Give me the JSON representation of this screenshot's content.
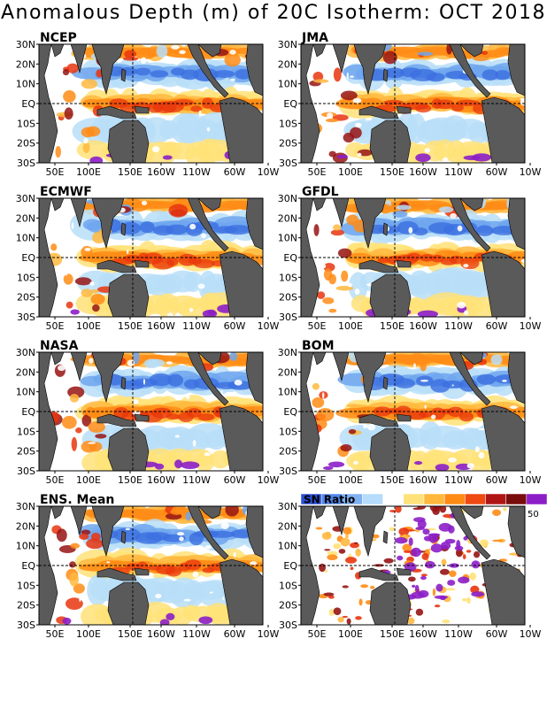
{
  "title": "Anomalous Depth (m) of 20C Isotherm: OCT 2018",
  "chart_data": [
    {
      "type": "heatmap",
      "title": "NCEP",
      "lat_ticks": [
        "30N",
        "20N",
        "10N",
        "EQ",
        "10S",
        "20S",
        "30S"
      ],
      "lon_ticks": [
        "50E",
        "100E",
        "150E",
        "160W",
        "110W",
        "60W",
        "10W"
      ]
    },
    {
      "type": "heatmap",
      "title": "JMA",
      "lat_ticks": [
        "30N",
        "20N",
        "10N",
        "EQ",
        "10S",
        "20S",
        "30S"
      ],
      "lon_ticks": [
        "50E",
        "100E",
        "150E",
        "160W",
        "110W",
        "60W",
        "10W"
      ]
    },
    {
      "type": "heatmap",
      "title": "ECMWF",
      "lat_ticks": [
        "30N",
        "20N",
        "10N",
        "EQ",
        "10S",
        "20S",
        "30S"
      ],
      "lon_ticks": [
        "50E",
        "100E",
        "150E",
        "160W",
        "110W",
        "60W",
        "10W"
      ]
    },
    {
      "type": "heatmap",
      "title": "GFDL",
      "lat_ticks": [
        "30N",
        "20N",
        "10N",
        "EQ",
        "10S",
        "20S",
        "30S"
      ],
      "lon_ticks": [
        "50E",
        "100E",
        "150E",
        "160W",
        "110W",
        "60W",
        "10W"
      ]
    },
    {
      "type": "heatmap",
      "title": "NASA",
      "lat_ticks": [
        "30N",
        "20N",
        "10N",
        "EQ",
        "10S",
        "20S",
        "30S"
      ],
      "lon_ticks": [
        "50E",
        "100E",
        "150E",
        "160W",
        "110W",
        "60W",
        "10W"
      ]
    },
    {
      "type": "heatmap",
      "title": "BOM",
      "lat_ticks": [
        "30N",
        "20N",
        "10N",
        "EQ",
        "10S",
        "20S",
        "30S"
      ],
      "lon_ticks": [
        "50E",
        "100E",
        "150E",
        "160W",
        "110W",
        "60W",
        "10W"
      ]
    },
    {
      "type": "heatmap",
      "title": "ENS. Mean",
      "lat_ticks": [
        "30N",
        "20N",
        "10N",
        "EQ",
        "10S",
        "20S",
        "30S"
      ],
      "lon_ticks": [
        "50E",
        "100E",
        "150E",
        "160W",
        "110W",
        "60W",
        "10W"
      ]
    },
    {
      "type": "heatmap",
      "title": "",
      "lat_ticks": [
        "30N",
        "20N",
        "10N",
        "EQ",
        "10S",
        "20S",
        "30S"
      ],
      "lon_ticks": [
        "50E",
        "100E",
        "150E",
        "160W",
        "110W",
        "60W",
        "10W"
      ]
    }
  ],
  "legend": {
    "label": "SN Ratio",
    "max_label": "50",
    "colors": [
      "#2a4fd6",
      "#4f86ea",
      "#7fb0f2",
      "#b5dcfa",
      "#ffffff",
      "#ffe17a",
      "#ffb83b",
      "#ff8a14",
      "#ee4a12",
      "#b01515",
      "#7a0c0c",
      "#8c1ec8"
    ]
  },
  "colors": {
    "land": "#5a5a5a",
    "purple": "#8c1ec8",
    "darkred": "#961414",
    "red": "#e8350e",
    "orange": "#ff8c16",
    "lightorange": "#ffb840",
    "yellow": "#ffe278",
    "lightblue": "#b8def8",
    "blue": "#6fa6ee",
    "deepblue": "#3c6fe0"
  }
}
